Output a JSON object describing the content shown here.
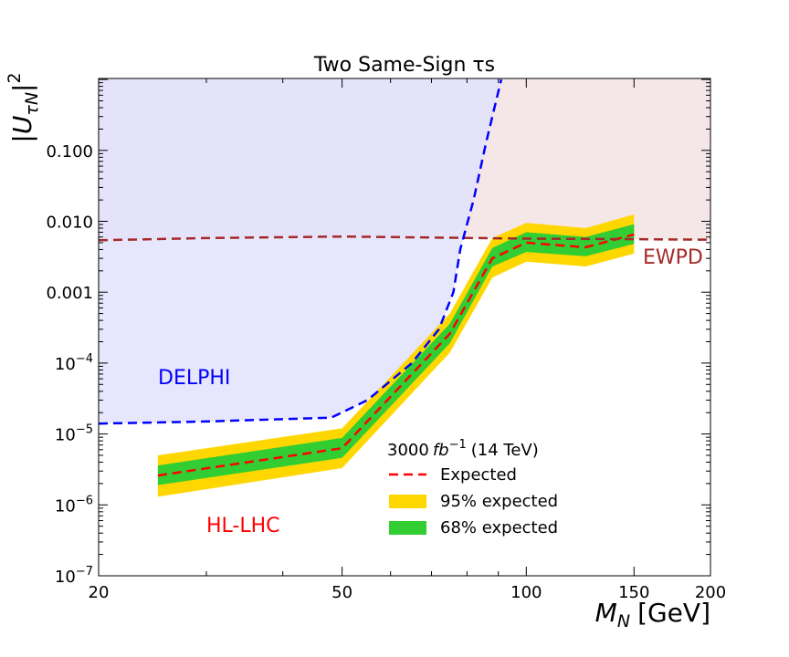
{
  "chart_data": {
    "type": "line",
    "title": "Two Same-Sign τs",
    "xlabel_main": "M",
    "xlabel_sub": "N",
    "xlabel_unit": "[GeV]",
    "ylabel_base": "|U",
    "ylabel_sub": "τN",
    "ylabel_tail": "|",
    "ylabel_sup": "2",
    "xscale": "log",
    "yscale": "log",
    "xlim": [
      20,
      200
    ],
    "ylim": [
      1e-07,
      1
    ],
    "x_ticks": [
      {
        "value": 20,
        "label": "20"
      },
      {
        "value": 50,
        "label": "50"
      },
      {
        "value": 100,
        "label": "100"
      },
      {
        "value": 150,
        "label": "150"
      },
      {
        "value": 200,
        "label": "200"
      }
    ],
    "x_minor_ticks": [
      30,
      40,
      60,
      70,
      80,
      90
    ],
    "y_ticks": [
      {
        "value": 1e-07,
        "mant": "10",
        "exp": "−7"
      },
      {
        "value": 1e-06,
        "mant": "10",
        "exp": "−6"
      },
      {
        "value": 1e-05,
        "mant": "10",
        "exp": "−5"
      },
      {
        "value": 0.0001,
        "mant": "10",
        "exp": "−4"
      },
      {
        "value": 0.001,
        "label": "0.001"
      },
      {
        "value": 0.01,
        "label": "0.010"
      },
      {
        "value": 0.1,
        "label": "0.100"
      }
    ],
    "regions": {
      "delphi": {
        "label": "DELPHI",
        "color": "#0000ff",
        "fill": "#e2e2fb",
        "x": [
          20,
          30,
          48,
          55,
          65,
          72,
          76,
          78,
          82,
          86,
          91
        ],
        "y": [
          1.4e-05,
          1.5e-05,
          1.7e-05,
          3e-05,
          0.0001,
          0.0003,
          0.001,
          0.004,
          0.02,
          0.13,
          1.0
        ]
      },
      "ewpd": {
        "label": "EWPD",
        "color": "#a52a2a",
        "fill": "#f5e7e7",
        "x": [
          20,
          30,
          50,
          70,
          100,
          150,
          200
        ],
        "y": [
          0.0054,
          0.0058,
          0.0061,
          0.0059,
          0.0057,
          0.0056,
          0.0055
        ]
      }
    },
    "series": [
      {
        "name": "Expected",
        "color": "#ff0000",
        "x": [
          25,
          50,
          75,
          88,
          100,
          125,
          150
        ],
        "y": [
          2.6e-06,
          6.3e-06,
          0.00026,
          0.003,
          0.005,
          0.0043,
          0.0065
        ]
      },
      {
        "name": "68% expected",
        "color": "#32cd32",
        "x": [
          25,
          50,
          75,
          88,
          100,
          125,
          150
        ],
        "lo": [
          1.9e-06,
          4.6e-06,
          0.00019,
          0.0023,
          0.0037,
          0.0032,
          0.0048
        ],
        "hi": [
          3.6e-06,
          8.8e-06,
          0.00036,
          0.0042,
          0.007,
          0.006,
          0.0091
        ]
      },
      {
        "name": "95% expected",
        "color": "#ffd700",
        "x": [
          25,
          50,
          75,
          88,
          100,
          125,
          150
        ],
        "lo": [
          1.3e-06,
          3.3e-06,
          0.00014,
          0.0016,
          0.0027,
          0.0023,
          0.0035
        ],
        "hi": [
          5e-06,
          1.2e-05,
          0.0005,
          0.0058,
          0.0095,
          0.008,
          0.0125
        ]
      }
    ],
    "legend": {
      "header_value": "3000",
      "header_unit_base": "fb",
      "header_unit_exp": "−1",
      "header_energy": "(14 TeV)",
      "items": [
        "Expected",
        "95% expected",
        "68% expected"
      ]
    },
    "annotations": {
      "hl_lhc": {
        "text": "HL-LHC",
        "color": "#ff0000"
      }
    }
  }
}
